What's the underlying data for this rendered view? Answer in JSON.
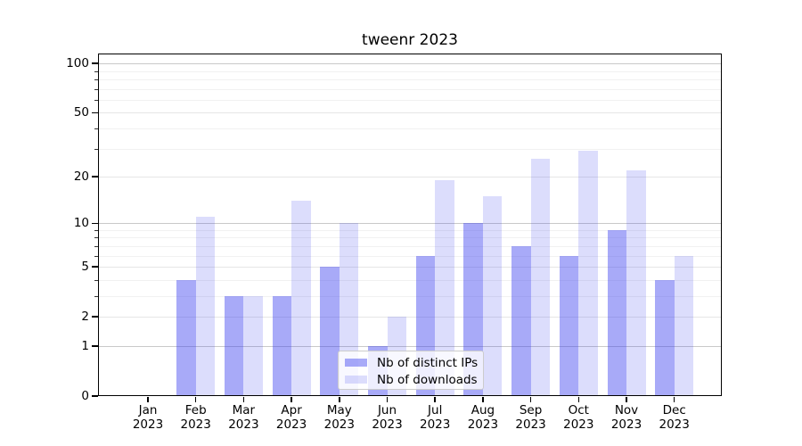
{
  "title": "tweenr 2023",
  "legend": {
    "items": [
      {
        "label": "Nb of distinct IPs",
        "color": "#a8aaf8"
      },
      {
        "label": "Nb of downloads",
        "color": "#dcdefb"
      }
    ]
  },
  "y_axis": {
    "tick_values": [
      100,
      50,
      20,
      10,
      5,
      2,
      1,
      0
    ],
    "tick_labels": [
      "100",
      "50",
      "20",
      "10",
      "5",
      "2",
      "1",
      "0"
    ],
    "major_grid": [
      1,
      10,
      100
    ],
    "labeled_minor_grid": [
      2,
      5,
      20,
      50
    ],
    "minor_grid": [
      3,
      4,
      6,
      7,
      8,
      9,
      30,
      40,
      60,
      70,
      80,
      90
    ]
  },
  "x_axis": {
    "months": [
      "Jan",
      "Feb",
      "Mar",
      "Apr",
      "May",
      "Jun",
      "Jul",
      "Aug",
      "Sep",
      "Oct",
      "Nov",
      "Dec"
    ],
    "year": "2023"
  },
  "chart_data": {
    "type": "bar",
    "title": "tweenr 2023",
    "categories": [
      "Jan 2023",
      "Feb 2023",
      "Mar 2023",
      "Apr 2023",
      "May 2023",
      "Jun 2023",
      "Jul 2023",
      "Aug 2023",
      "Sep 2023",
      "Oct 2023",
      "Nov 2023",
      "Dec 2023"
    ],
    "series": [
      {
        "name": "Nb of distinct IPs",
        "color": "#a8aaf8",
        "values": [
          0,
          4,
          3,
          3,
          5,
          1,
          6,
          10,
          7,
          6,
          9,
          4
        ]
      },
      {
        "name": "Nb of downloads",
        "color": "#dcdefb",
        "values": [
          0,
          11,
          3,
          14,
          10,
          2,
          19,
          15,
          26,
          29,
          22,
          6
        ]
      }
    ],
    "xlabel": "",
    "ylabel": "",
    "y_scale": "log1p",
    "y_ticks": [
      0,
      1,
      2,
      5,
      10,
      20,
      50,
      100
    ],
    "ylim": [
      0,
      115
    ],
    "grid": "on",
    "legend_position": "lower center"
  }
}
